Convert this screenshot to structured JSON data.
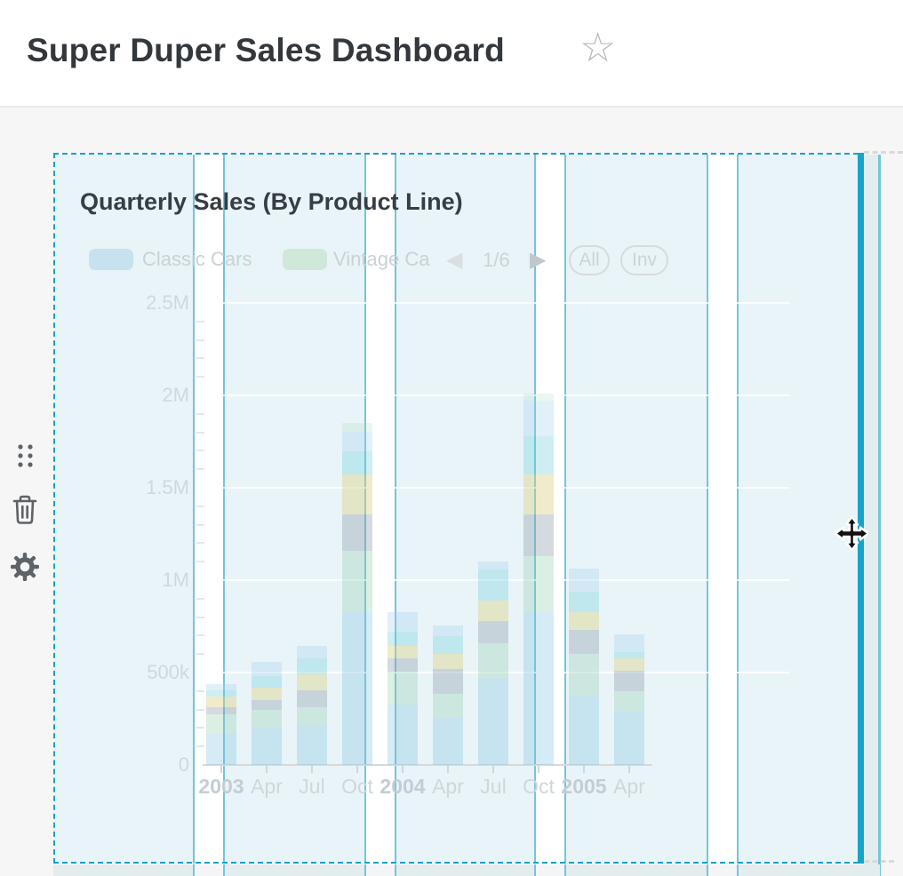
{
  "header": {
    "title": "Super Duper Sales Dashboard",
    "favorite_icon": "star-outline"
  },
  "side_toolbar": {
    "icons": [
      "drag-handle",
      "trash",
      "gear"
    ]
  },
  "widget": {
    "title": "Quarterly Sales (By Product Line)",
    "legend": [
      {
        "label": "Classic Cars",
        "swatch_color": "#c6e2ee"
      },
      {
        "label": "Vintage Ca",
        "swatch_color": "#d0e8da"
      }
    ],
    "pagination": {
      "page": "1/6",
      "prev_icon": "left-triangle",
      "next_icon": "right-triangle"
    },
    "filter_buttons": [
      {
        "label": "All"
      },
      {
        "label": "Inv"
      }
    ],
    "state": "selected-dragging",
    "cursor": "move-cursor"
  },
  "colors": {
    "accent_teal": "#18a3c8",
    "grid_line_teal": "#74c5da",
    "widget_fill": "#e9f4f8",
    "ghost_dash_gray": "#d9d9d9",
    "page_background": "#f6f6f7"
  },
  "chart_data": {
    "type": "bar",
    "stacked": true,
    "title": "Quarterly Sales (By Product Line)",
    "categories": [
      "2003",
      "Apr",
      "Jul",
      "Oct",
      "2004",
      "Apr",
      "Jul",
      "Oct",
      "2005",
      "Apr"
    ],
    "units": "thousands",
    "ylim": [
      0,
      2500
    ],
    "y_step_major": 500,
    "y_step_minor": 100,
    "y_tick_labels": [
      "0",
      "500k",
      "1M",
      "1.5M",
      "2M",
      "2.5M"
    ],
    "legend_position": "top",
    "grid": "horizontal-major",
    "series": [
      {
        "name": "Classic Cars",
        "color": "rgba(125,193,224,0.32)",
        "values": [
          168,
          202,
          216,
          827,
          327,
          255,
          466,
          827,
          375,
          289
        ]
      },
      {
        "name": "Vintage Ca",
        "color": "rgba(138,203,167,0.30)",
        "values": [
          106,
          96,
          96,
          332,
          178,
          130,
          192,
          303,
          226,
          111
        ]
      },
      {
        "name": "unlabeled-gray",
        "color": "rgba(141,158,170,0.38)",
        "values": [
          38,
          53,
          91,
          197,
          72,
          135,
          120,
          226,
          130,
          111
        ]
      },
      {
        "name": "unlabeled-cream",
        "color": "rgba(220,208,130,0.42)",
        "values": [
          58,
          67,
          87,
          216,
          67,
          82,
          111,
          216,
          96,
          67
        ]
      },
      {
        "name": "unlabeled-cyan",
        "color": "rgba(112,205,220,0.34)",
        "values": [
          34,
          63,
          87,
          125,
          77,
          96,
          168,
          207,
          111,
          34
        ]
      },
      {
        "name": "unlabeled-paleblue",
        "color": "rgba(158,205,238,0.30)",
        "values": [
          34,
          77,
          67,
          106,
          106,
          58,
          43,
          192,
          125,
          96
        ]
      },
      {
        "name": "unlabeled-palegreen",
        "color": "rgba(158,218,180,0.22)",
        "values": [
          0,
          0,
          0,
          48,
          0,
          0,
          0,
          38,
          0,
          0
        ]
      }
    ]
  }
}
